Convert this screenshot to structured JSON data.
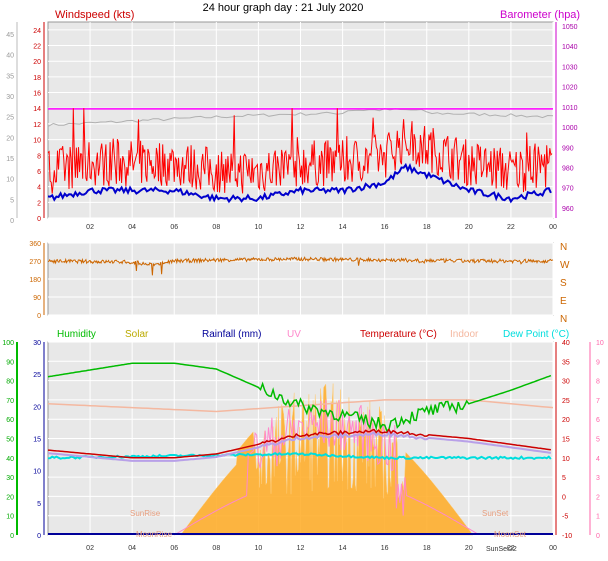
{
  "title": "24 hour graph day : 21 July 2020",
  "colors": {
    "plot_bg": "#e8e8e8",
    "grid": "#ffffff",
    "wind": "#ff0000",
    "wind_avg": "#0000cc",
    "baro": "#ff00ff",
    "baro_gray": "#b0b0b0",
    "dir": "#cc6600",
    "humidity": "#00bb00",
    "solar": "#ffaa22",
    "rain": "#000099",
    "uv": "#ff88cc",
    "temp": "#cc0000",
    "indoor": "#f4b8a0",
    "dewpoint": "#00dddd"
  },
  "chart_data": [
    {
      "type": "line",
      "panel": "wind-pressure",
      "left_axis_title": "Windspeed (kts)",
      "right_axis_title": "Barometer (hpa)",
      "x_ticks": [
        "02",
        "04",
        "06",
        "08",
        "10",
        "12",
        "14",
        "16",
        "18",
        "20",
        "22",
        "00"
      ],
      "left_outer_ticks": [
        "0",
        "5",
        "10",
        "15",
        "20",
        "25",
        "30",
        "35",
        "40",
        "45"
      ],
      "left_inner_ticks": [
        "0",
        "2",
        "4",
        "6",
        "8",
        "10",
        "12",
        "14",
        "16",
        "18",
        "20",
        "22",
        "24"
      ],
      "right_ticks": [
        "960",
        "970",
        "980",
        "990",
        "1000",
        "1010",
        "1020",
        "1030",
        "1040",
        "1050"
      ],
      "ylim_wind": [
        0,
        25
      ],
      "ylim_baro": [
        955,
        1052
      ],
      "series": [
        {
          "name": "Windspeed (kts)",
          "x": [
            0,
            2,
            4,
            6,
            8,
            10,
            12,
            14,
            16,
            17,
            18,
            19,
            20,
            22,
            24
          ],
          "values": [
            6,
            7,
            7,
            7,
            6,
            6,
            7,
            7,
            8,
            10,
            9,
            8,
            7,
            6,
            7
          ]
        },
        {
          "name": "Barometer (hpa)",
          "x": [
            0,
            4,
            8,
            12,
            16,
            20,
            24
          ],
          "values": [
            1009,
            1009,
            1009,
            1009,
            1009,
            1009,
            1009
          ]
        }
      ]
    },
    {
      "type": "line",
      "panel": "wind-direction",
      "left_ticks": [
        "0",
        "90",
        "180",
        "270",
        "360"
      ],
      "right_ticks": [
        "N",
        "W",
        "S",
        "E",
        "N"
      ],
      "ylim": [
        0,
        360
      ],
      "series": [
        {
          "name": "Direction",
          "x": [
            0,
            4,
            5,
            6,
            8,
            12,
            16,
            20,
            24
          ],
          "values": [
            270,
            265,
            250,
            270,
            275,
            280,
            275,
            270,
            270
          ]
        }
      ]
    },
    {
      "type": "line",
      "panel": "temperature-humidity",
      "legend": [
        "Humidity",
        "Solar",
        "Rainfall (mm)",
        "UV",
        "Temperature (°C)",
        "Indoor",
        "Dew Point (°C)"
      ],
      "left_outer_ticks": [
        "0",
        "10",
        "20",
        "30",
        "40",
        "50",
        "60",
        "70",
        "80",
        "90",
        "100"
      ],
      "left_inner_ticks": [
        "0",
        "5",
        "10",
        "15",
        "20",
        "25",
        "30"
      ],
      "right_inner_ticks": [
        "-10",
        "-5",
        "0",
        "5",
        "10",
        "15",
        "20",
        "25",
        "30",
        "35",
        "40"
      ],
      "right_outer_ticks": [
        "0",
        "1",
        "2",
        "3",
        "4",
        "5",
        "6",
        "7",
        "8",
        "9",
        "10"
      ],
      "annotations": [
        "SunRise",
        "MoonRise",
        "SunSet",
        "MoonSet",
        "SunSet22"
      ],
      "ylim_temp": [
        -10,
        40
      ],
      "series": [
        {
          "name": "Humidity",
          "x": [
            0,
            4,
            6,
            8,
            12,
            14,
            16,
            18,
            20,
            22,
            24
          ],
          "values": [
            82,
            89,
            89,
            86,
            67,
            62,
            57,
            64,
            68,
            75,
            83
          ]
        },
        {
          "name": "Temperature (°C)",
          "x": [
            0,
            4,
            6,
            8,
            12,
            16,
            20,
            24
          ],
          "values": [
            12,
            10,
            10,
            11,
            16,
            17,
            15,
            12
          ]
        },
        {
          "name": "Dew Point (°C)",
          "x": [
            0,
            12,
            16,
            24
          ],
          "values": [
            10,
            11,
            10,
            10
          ]
        },
        {
          "name": "Indoor",
          "x": [
            0,
            8,
            16,
            20,
            24
          ],
          "values": [
            24,
            22,
            25,
            25,
            23
          ]
        }
      ]
    }
  ]
}
